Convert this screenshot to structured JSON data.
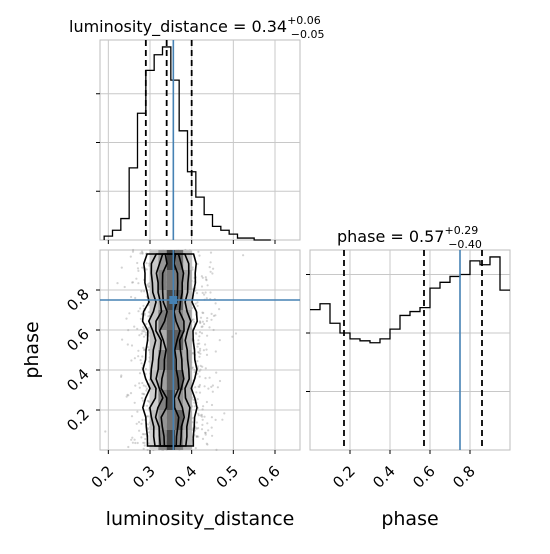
{
  "chart_data": [
    {
      "type": "histogram",
      "panel": "luminosity_distance marginal",
      "title": {
        "prefix": "luminosity_distance = 0.34",
        "plus": "+0.06",
        "minus": "−0.05"
      },
      "x_range": [
        0.18,
        0.66
      ],
      "y_range": [
        0,
        1.0
      ],
      "bins": {
        "edges": [
          0.19,
          0.21,
          0.23,
          0.25,
          0.27,
          0.29,
          0.31,
          0.33,
          0.35,
          0.37,
          0.39,
          0.41,
          0.43,
          0.45,
          0.47,
          0.49,
          0.51,
          0.53,
          0.55,
          0.57,
          0.59
        ],
        "counts": [
          0.02,
          0.05,
          0.11,
          0.37,
          0.65,
          0.87,
          0.95,
          0.99,
          0.82,
          0.56,
          0.35,
          0.22,
          0.13,
          0.07,
          0.05,
          0.03,
          0.01,
          0.01,
          0.0,
          0.0
        ]
      },
      "quantiles": [
        0.29,
        0.34,
        0.4
      ],
      "truth": 0.356,
      "grid": true
    },
    {
      "type": "density2d",
      "panel": "luminosity_distance vs phase",
      "xlabel": "luminosity_distance",
      "ylabel": "phase",
      "x_range": [
        0.18,
        0.66
      ],
      "y_range": [
        0.0,
        1.0
      ],
      "x_ticks": [
        "0.2",
        "0.3",
        "0.4",
        "0.5",
        "0.6"
      ],
      "x_tick_values": [
        0.2,
        0.3,
        0.4,
        0.5,
        0.6
      ],
      "y_ticks": [
        "0.2",
        "0.4",
        "0.6",
        "0.8"
      ],
      "y_tick_values": [
        0.2,
        0.4,
        0.6,
        0.8
      ],
      "truth": {
        "x": 0.356,
        "y": 0.75
      },
      "contour_levels": 4,
      "grid": true
    },
    {
      "type": "histogram",
      "panel": "phase marginal",
      "title": {
        "prefix": "phase = 0.57",
        "plus": "+0.29",
        "minus": "−0.40"
      },
      "xlabel": "phase",
      "x_range": [
        0.0,
        1.0
      ],
      "y_range": [
        0,
        1.0
      ],
      "x_ticks": [
        "0.2",
        "0.4",
        "0.6",
        "0.8"
      ],
      "x_tick_values": [
        0.2,
        0.4,
        0.6,
        0.8
      ],
      "bins": {
        "edges": [
          0.0,
          0.05,
          0.1,
          0.15,
          0.2,
          0.25,
          0.3,
          0.35,
          0.4,
          0.45,
          0.5,
          0.55,
          0.6,
          0.65,
          0.7,
          0.75,
          0.8,
          0.85,
          0.9,
          0.95,
          1.0
        ],
        "counts": [
          0.72,
          0.75,
          0.65,
          0.6,
          0.57,
          0.56,
          0.55,
          0.57,
          0.62,
          0.69,
          0.71,
          0.73,
          0.83,
          0.86,
          0.89,
          0.9,
          0.97,
          0.95,
          0.99,
          0.82
        ]
      },
      "quantiles": [
        0.17,
        0.57,
        0.86
      ],
      "truth": 0.75,
      "grid": true
    }
  ]
}
